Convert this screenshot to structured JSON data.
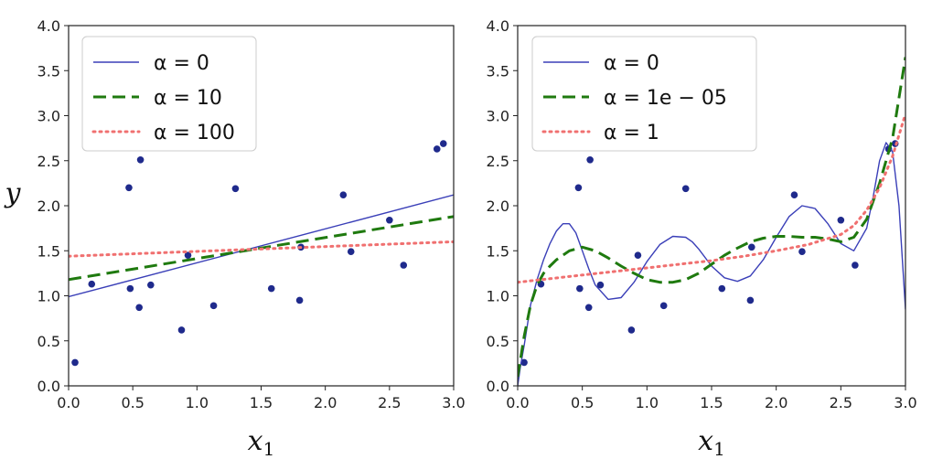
{
  "chart_data": [
    {
      "type": "line",
      "xlabel": "x",
      "xlabel_sub": "1",
      "ylabel": "y",
      "xlim": [
        0,
        3
      ],
      "ylim": [
        0,
        4
      ],
      "xticks": [
        "0.0",
        "0.5",
        "1.0",
        "1.5",
        "2.0",
        "2.5",
        "3.0"
      ],
      "yticks": [
        "0.0",
        "0.5",
        "1.0",
        "1.5",
        "2.0",
        "2.5",
        "3.0",
        "3.5",
        "4.0"
      ],
      "grid": false,
      "legend_position": "top-left",
      "scatter": {
        "color": "#1f2a8c",
        "points": [
          [
            0.05,
            0.26
          ],
          [
            0.18,
            1.13
          ],
          [
            0.47,
            2.2
          ],
          [
            0.48,
            1.08
          ],
          [
            0.55,
            0.87
          ],
          [
            0.56,
            2.51
          ],
          [
            0.64,
            1.12
          ],
          [
            0.88,
            0.62
          ],
          [
            0.93,
            1.45
          ],
          [
            1.13,
            0.89
          ],
          [
            1.3,
            2.19
          ],
          [
            1.58,
            1.08
          ],
          [
            1.8,
            0.95
          ],
          [
            1.81,
            1.54
          ],
          [
            2.14,
            2.12
          ],
          [
            2.2,
            1.49
          ],
          [
            2.5,
            1.84
          ],
          [
            2.61,
            1.34
          ],
          [
            2.87,
            2.63
          ],
          [
            2.92,
            2.69
          ]
        ]
      },
      "series": [
        {
          "name": "α = 0",
          "style": "solid",
          "color": "#3a3fb8",
          "x": [
            0,
            3
          ],
          "y": [
            0.99,
            2.12
          ]
        },
        {
          "name": "α = 10",
          "style": "dashed",
          "color": "#1f7a0f",
          "x": [
            0,
            3
          ],
          "y": [
            1.18,
            1.88
          ]
        },
        {
          "name": "α = 100",
          "style": "dotted",
          "color": "#f07070",
          "x": [
            0,
            3
          ],
          "y": [
            1.44,
            1.6
          ]
        }
      ]
    },
    {
      "type": "line",
      "xlabel": "x",
      "xlabel_sub": "1",
      "ylabel": "",
      "xlim": [
        0,
        3
      ],
      "ylim": [
        0,
        4
      ],
      "xticks": [
        "0.0",
        "0.5",
        "1.0",
        "1.5",
        "2.0",
        "2.5",
        "3.0"
      ],
      "yticks": [
        "0.0",
        "0.5",
        "1.0",
        "1.5",
        "2.0",
        "2.5",
        "3.0",
        "3.5",
        "4.0"
      ],
      "grid": false,
      "legend_position": "top-left",
      "scatter": {
        "color": "#1f2a8c",
        "points": [
          [
            0.05,
            0.26
          ],
          [
            0.18,
            1.13
          ],
          [
            0.47,
            2.2
          ],
          [
            0.48,
            1.08
          ],
          [
            0.55,
            0.87
          ],
          [
            0.56,
            2.51
          ],
          [
            0.64,
            1.12
          ],
          [
            0.88,
            0.62
          ],
          [
            0.93,
            1.45
          ],
          [
            1.13,
            0.89
          ],
          [
            1.3,
            2.19
          ],
          [
            1.58,
            1.08
          ],
          [
            1.8,
            0.95
          ],
          [
            1.81,
            1.54
          ],
          [
            2.14,
            2.12
          ],
          [
            2.2,
            1.49
          ],
          [
            2.5,
            1.84
          ],
          [
            2.61,
            1.34
          ],
          [
            2.87,
            2.63
          ],
          [
            2.92,
            2.69
          ]
        ]
      },
      "series": [
        {
          "name": "α = 0",
          "style": "solid",
          "color": "#3a3fb8",
          "x": [
            0.0,
            0.02,
            0.05,
            0.1,
            0.15,
            0.2,
            0.25,
            0.3,
            0.35,
            0.4,
            0.45,
            0.5,
            0.55,
            0.6,
            0.7,
            0.8,
            0.9,
            1.0,
            1.1,
            1.2,
            1.3,
            1.35,
            1.4,
            1.5,
            1.6,
            1.7,
            1.8,
            1.9,
            2.0,
            2.1,
            2.2,
            2.3,
            2.4,
            2.5,
            2.6,
            2.7,
            2.75,
            2.8,
            2.85,
            2.9,
            2.95,
            3.0
          ],
          "y": [
            0.0,
            0.2,
            0.45,
            0.9,
            1.18,
            1.4,
            1.58,
            1.72,
            1.8,
            1.8,
            1.7,
            1.5,
            1.3,
            1.12,
            0.96,
            0.98,
            1.15,
            1.38,
            1.57,
            1.66,
            1.65,
            1.6,
            1.52,
            1.33,
            1.2,
            1.16,
            1.22,
            1.4,
            1.65,
            1.88,
            2.0,
            1.97,
            1.8,
            1.58,
            1.5,
            1.75,
            2.1,
            2.5,
            2.7,
            2.6,
            2.0,
            0.85
          ]
        },
        {
          "name": "α = 1e − 05",
          "style": "dashed",
          "color": "#1f7a0f",
          "x": [
            0.0,
            0.05,
            0.1,
            0.15,
            0.2,
            0.25,
            0.3,
            0.4,
            0.5,
            0.6,
            0.7,
            0.8,
            0.9,
            1.0,
            1.1,
            1.2,
            1.3,
            1.4,
            1.5,
            1.6,
            1.7,
            1.8,
            1.9,
            2.0,
            2.1,
            2.2,
            2.3,
            2.4,
            2.5,
            2.6,
            2.7,
            2.8,
            2.9,
            3.0
          ],
          "y": [
            0.1,
            0.55,
            0.9,
            1.12,
            1.25,
            1.33,
            1.4,
            1.5,
            1.54,
            1.5,
            1.42,
            1.33,
            1.25,
            1.18,
            1.15,
            1.15,
            1.18,
            1.25,
            1.35,
            1.45,
            1.53,
            1.6,
            1.64,
            1.66,
            1.66,
            1.65,
            1.65,
            1.63,
            1.6,
            1.65,
            1.85,
            2.25,
            2.75,
            3.65
          ]
        },
        {
          "name": "α = 1",
          "style": "dotted",
          "color": "#f07070",
          "x": [
            0.0,
            0.25,
            0.5,
            0.75,
            1.0,
            1.25,
            1.5,
            1.75,
            2.0,
            2.25,
            2.5,
            2.6,
            2.7,
            2.8,
            2.9,
            3.0
          ],
          "y": [
            1.15,
            1.19,
            1.23,
            1.27,
            1.31,
            1.35,
            1.39,
            1.44,
            1.5,
            1.57,
            1.68,
            1.78,
            1.95,
            2.2,
            2.55,
            3.02
          ]
        }
      ]
    }
  ]
}
